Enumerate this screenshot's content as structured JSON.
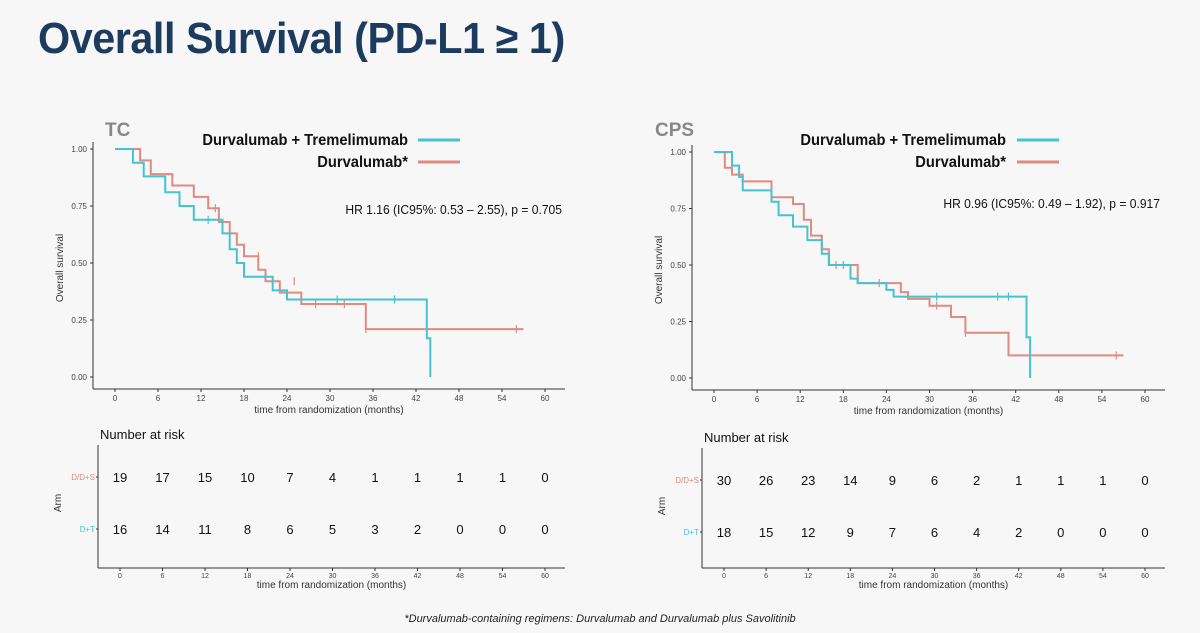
{
  "slide": {
    "title": "Overall Survival (PD-L1 ≥ 1)",
    "footnote": "*Durvalumab-containing regimens: Durvalumab and Durvalumab plus Savolitinib"
  },
  "colors": {
    "title": "#1d3b5f",
    "dt": "#45c3cf",
    "d": "#e08a80",
    "axis": "#333333",
    "label": "#888888"
  },
  "chart_data": [
    {
      "type": "line",
      "panel_label": "TC",
      "xlabel": "time from randomization (months)",
      "ylabel": "Overall survival",
      "xlim": [
        0,
        60
      ],
      "ylim": [
        0,
        1
      ],
      "x_ticks": [
        "0",
        "6",
        "12",
        "18",
        "24",
        "30",
        "36",
        "42",
        "48",
        "54",
        "60"
      ],
      "y_ticks": [
        "0.00",
        "0.25",
        "0.50",
        "0.75",
        "1.00"
      ],
      "hr_text": "HR 1.16 (IC95%: 0.53 – 2.55), p = 0.705",
      "series": [
        {
          "name": "Durvalumab + Tremelimumab",
          "color": "#45c3cf",
          "steps": [
            [
              0,
              1.0
            ],
            [
              2.5,
              1.0
            ],
            [
              2.5,
              0.94
            ],
            [
              4,
              0.94
            ],
            [
              4,
              0.88
            ],
            [
              7,
              0.88
            ],
            [
              7,
              0.81
            ],
            [
              9,
              0.81
            ],
            [
              9,
              0.75
            ],
            [
              11,
              0.75
            ],
            [
              11,
              0.69
            ],
            [
              15,
              0.69
            ],
            [
              15,
              0.63
            ],
            [
              16,
              0.63
            ],
            [
              16,
              0.56
            ],
            [
              17,
              0.56
            ],
            [
              17,
              0.5
            ],
            [
              18,
              0.5
            ],
            [
              18,
              0.44
            ],
            [
              22,
              0.44
            ],
            [
              22,
              0.38
            ],
            [
              24,
              0.38
            ],
            [
              24,
              0.34
            ],
            [
              43.5,
              0.34
            ],
            [
              43.5,
              0.17
            ],
            [
              44,
              0.17
            ],
            [
              44,
              0.0
            ]
          ],
          "censors": [
            [
              13,
              0.69
            ],
            [
              31,
              0.34
            ],
            [
              39,
              0.34
            ],
            [
              43.5,
              0.25
            ]
          ]
        },
        {
          "name": "Durvalumab*",
          "color": "#e08a80",
          "steps": [
            [
              0,
              1.0
            ],
            [
              3.5,
              1.0
            ],
            [
              3.5,
              0.95
            ],
            [
              5,
              0.95
            ],
            [
              5,
              0.89
            ],
            [
              8,
              0.89
            ],
            [
              8,
              0.84
            ],
            [
              11,
              0.84
            ],
            [
              11,
              0.79
            ],
            [
              13,
              0.79
            ],
            [
              13,
              0.74
            ],
            [
              14.5,
              0.74
            ],
            [
              14.5,
              0.68
            ],
            [
              16,
              0.68
            ],
            [
              16,
              0.63
            ],
            [
              17,
              0.63
            ],
            [
              17,
              0.58
            ],
            [
              18,
              0.58
            ],
            [
              18,
              0.53
            ],
            [
              20,
              0.53
            ],
            [
              20,
              0.47
            ],
            [
              21,
              0.47
            ],
            [
              21,
              0.42
            ],
            [
              23,
              0.42
            ],
            [
              23,
              0.37
            ],
            [
              26,
              0.37
            ],
            [
              26,
              0.32
            ],
            [
              35,
              0.32
            ],
            [
              35,
              0.21
            ],
            [
              57,
              0.21
            ]
          ],
          "censors": [
            [
              14,
              0.74
            ],
            [
              20,
              0.53
            ],
            [
              25,
              0.42
            ],
            [
              28,
              0.32
            ],
            [
              32,
              0.32
            ],
            [
              35,
              0.21
            ],
            [
              56,
              0.21
            ]
          ]
        }
      ],
      "risk_table": {
        "title": "Number at risk",
        "ylabel": "Arm",
        "xlabel": "time from randomization (months)",
        "x_ticks": [
          "0",
          "6",
          "12",
          "18",
          "24",
          "30",
          "36",
          "42",
          "48",
          "54",
          "60"
        ],
        "rows": [
          {
            "label": "D/D+S",
            "color": "#e08a80",
            "values": [
              "19",
              "17",
              "15",
              "10",
              "7",
              "4",
              "1",
              "1",
              "1",
              "1",
              "0"
            ]
          },
          {
            "label": "D+T",
            "color": "#45c3cf",
            "values": [
              "16",
              "14",
              "11",
              "8",
              "6",
              "5",
              "3",
              "2",
              "0",
              "0",
              "0"
            ]
          }
        ]
      }
    },
    {
      "type": "line",
      "panel_label": "CPS",
      "xlabel": "time from randomization (months)",
      "ylabel": "Overall survival",
      "xlim": [
        0,
        60
      ],
      "ylim": [
        0,
        1
      ],
      "x_ticks": [
        "0",
        "6",
        "12",
        "18",
        "24",
        "30",
        "36",
        "42",
        "48",
        "54",
        "60"
      ],
      "y_ticks": [
        "0.00",
        "0.25",
        "0.50",
        "0.75",
        "1.00"
      ],
      "hr_text": "HR 0.96 (IC95%: 0.49 – 1.92), p = 0.917",
      "series": [
        {
          "name": "Durvalumab + Tremelimumab",
          "color": "#45c3cf",
          "steps": [
            [
              0,
              1.0
            ],
            [
              2.5,
              1.0
            ],
            [
              2.5,
              0.94
            ],
            [
              3.5,
              0.94
            ],
            [
              3.5,
              0.89
            ],
            [
              4,
              0.89
            ],
            [
              4,
              0.83
            ],
            [
              8,
              0.83
            ],
            [
              8,
              0.78
            ],
            [
              9,
              0.78
            ],
            [
              9,
              0.72
            ],
            [
              11,
              0.72
            ],
            [
              11,
              0.67
            ],
            [
              13,
              0.67
            ],
            [
              13,
              0.61
            ],
            [
              15,
              0.61
            ],
            [
              15,
              0.55
            ],
            [
              16,
              0.55
            ],
            [
              16,
              0.5
            ],
            [
              19,
              0.5
            ],
            [
              19,
              0.44
            ],
            [
              20,
              0.44
            ],
            [
              20,
              0.42
            ],
            [
              24,
              0.42
            ],
            [
              24,
              0.39
            ],
            [
              25,
              0.39
            ],
            [
              25,
              0.36
            ],
            [
              43.5,
              0.36
            ],
            [
              43.5,
              0.18
            ],
            [
              44,
              0.18
            ],
            [
              44,
              0.0
            ]
          ],
          "censors": [
            [
              18,
              0.5
            ],
            [
              31,
              0.36
            ],
            [
              39.5,
              0.36
            ],
            [
              41,
              0.36
            ]
          ]
        },
        {
          "name": "Durvalumab*",
          "color": "#e08a80",
          "steps": [
            [
              0,
              1.0
            ],
            [
              1.5,
              1.0
            ],
            [
              1.5,
              0.93
            ],
            [
              2.5,
              0.93
            ],
            [
              2.5,
              0.9
            ],
            [
              4,
              0.9
            ],
            [
              4,
              0.87
            ],
            [
              8,
              0.87
            ],
            [
              8,
              0.8
            ],
            [
              11,
              0.8
            ],
            [
              11,
              0.77
            ],
            [
              12.5,
              0.77
            ],
            [
              12.5,
              0.7
            ],
            [
              13.5,
              0.7
            ],
            [
              13.5,
              0.63
            ],
            [
              15,
              0.63
            ],
            [
              15,
              0.57
            ],
            [
              16,
              0.57
            ],
            [
              16,
              0.5
            ],
            [
              20,
              0.5
            ],
            [
              20,
              0.42
            ],
            [
              26,
              0.42
            ],
            [
              26,
              0.38
            ],
            [
              27,
              0.38
            ],
            [
              27,
              0.35
            ],
            [
              30,
              0.35
            ],
            [
              30,
              0.32
            ],
            [
              33,
              0.32
            ],
            [
              33,
              0.27
            ],
            [
              35,
              0.27
            ],
            [
              35,
              0.2
            ],
            [
              41,
              0.2
            ],
            [
              41,
              0.1
            ],
            [
              57,
              0.1
            ]
          ],
          "censors": [
            [
              17,
              0.5
            ],
            [
              23,
              0.42
            ],
            [
              31,
              0.32
            ],
            [
              35,
              0.2
            ],
            [
              56,
              0.1
            ]
          ]
        }
      ],
      "risk_table": {
        "title": "Number at risk",
        "ylabel": "Arm",
        "xlabel": "time from randomization (months)",
        "x_ticks": [
          "0",
          "6",
          "12",
          "18",
          "24",
          "30",
          "36",
          "42",
          "48",
          "54",
          "60"
        ],
        "rows": [
          {
            "label": "D/D+S",
            "color": "#e08a80",
            "values": [
              "30",
              "26",
              "23",
              "14",
              "9",
              "6",
              "2",
              "1",
              "1",
              "1",
              "0"
            ]
          },
          {
            "label": "D+T",
            "color": "#45c3cf",
            "values": [
              "18",
              "15",
              "12",
              "9",
              "7",
              "6",
              "4",
              "2",
              "0",
              "0",
              "0"
            ]
          }
        ]
      }
    }
  ]
}
